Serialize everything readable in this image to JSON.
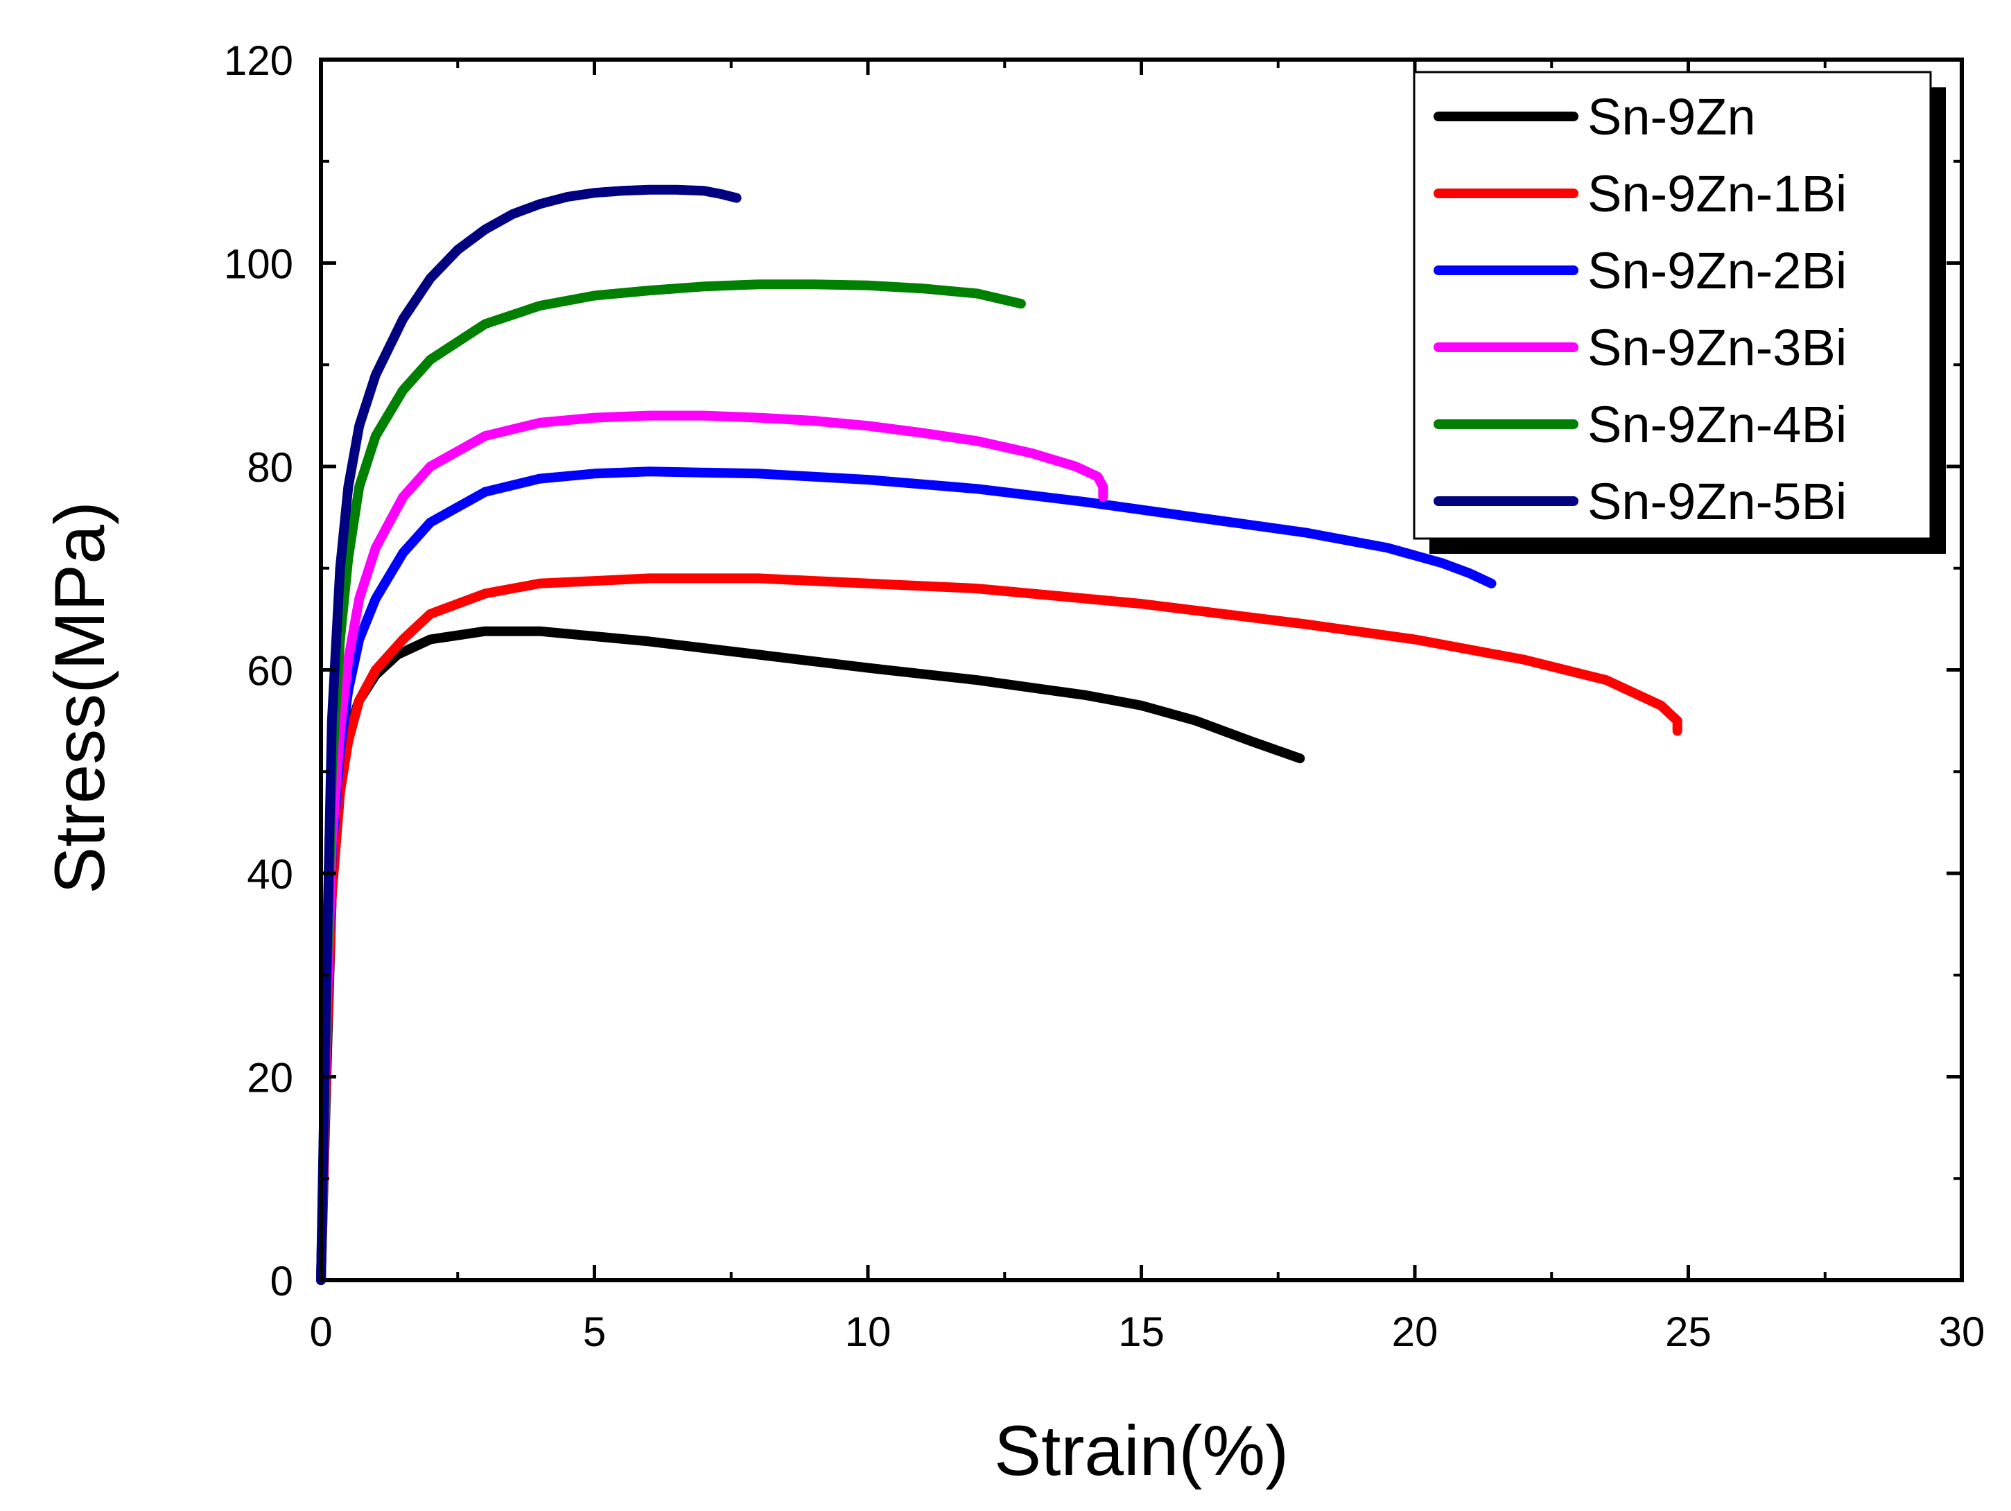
{
  "chart_data": {
    "type": "line",
    "title": "",
    "xlabel": "Strain(%)",
    "ylabel": "Stress(MPa)",
    "xlim": [
      0,
      30
    ],
    "ylim": [
      0,
      120
    ],
    "xticks": [
      0,
      5,
      10,
      15,
      20,
      25,
      30
    ],
    "xtick_labels": [
      "0",
      "5",
      "10",
      "15",
      "20",
      "25",
      "30"
    ],
    "yticks": [
      0,
      20,
      40,
      60,
      80,
      100,
      120
    ],
    "ytick_labels": [
      "0",
      "20",
      "40",
      "60",
      "80",
      "100",
      "120"
    ],
    "grid": false,
    "legend_position": "top-right",
    "series": [
      {
        "name": "Sn-9Zn",
        "color": "#000000",
        "x": [
          0,
          0.1,
          0.2,
          0.35,
          0.5,
          0.7,
          1.0,
          1.4,
          2.0,
          3.0,
          4.0,
          6.0,
          8.0,
          10.0,
          12.0,
          14.0,
          15.0,
          16.0,
          17.0,
          17.9
        ],
        "y": [
          0,
          20,
          38,
          48,
          54,
          57,
          59.5,
          61.5,
          63,
          63.8,
          63.8,
          62.8,
          61.5,
          60.2,
          59,
          57.5,
          56.5,
          55,
          53,
          51.3
        ]
      },
      {
        "name": "Sn-9Zn-1Bi",
        "color": "#ff0000",
        "x": [
          0,
          0.1,
          0.2,
          0.35,
          0.5,
          0.7,
          1.0,
          1.5,
          2.0,
          3.0,
          4.0,
          6.0,
          8.0,
          10.0,
          12.0,
          15.0,
          18.0,
          20.0,
          22.0,
          23.5,
          24.5,
          24.8,
          24.8
        ],
        "y": [
          0,
          22,
          38,
          48,
          53,
          57,
          60,
          63,
          65.5,
          67.5,
          68.5,
          69,
          69,
          68.5,
          68,
          66.5,
          64.5,
          63,
          61,
          59,
          56.5,
          55,
          54
        ]
      },
      {
        "name": "Sn-9Zn-2Bi",
        "color": "#0000ff",
        "x": [
          0,
          0.1,
          0.2,
          0.35,
          0.5,
          0.7,
          1.0,
          1.5,
          2.0,
          3.0,
          4.0,
          5.0,
          6.0,
          8.0,
          10.0,
          12.0,
          14.0,
          16.0,
          18.0,
          19.5,
          20.5,
          21.0,
          21.4
        ],
        "y": [
          0,
          25,
          42,
          52,
          58,
          63,
          67,
          71.5,
          74.5,
          77.5,
          78.8,
          79.3,
          79.5,
          79.3,
          78.7,
          77.8,
          76.5,
          75,
          73.5,
          72,
          70.5,
          69.5,
          68.5
        ]
      },
      {
        "name": "Sn-9Zn-3Bi",
        "color": "#ff00ff",
        "x": [
          0,
          0.1,
          0.2,
          0.35,
          0.5,
          0.7,
          1.0,
          1.5,
          2.0,
          3.0,
          4.0,
          5.0,
          6.0,
          7.0,
          8.0,
          9.0,
          10.0,
          11.0,
          12.0,
          13.0,
          13.8,
          14.2,
          14.3,
          14.3
        ],
        "y": [
          0,
          25,
          43,
          54,
          61,
          67,
          72,
          77,
          80,
          83,
          84.3,
          84.8,
          85,
          85,
          84.8,
          84.5,
          84,
          83.3,
          82.5,
          81.3,
          80,
          79,
          78,
          77
        ]
      },
      {
        "name": "Sn-9Zn-4Bi",
        "color": "#008000",
        "x": [
          0,
          0.1,
          0.2,
          0.35,
          0.5,
          0.7,
          1.0,
          1.5,
          2.0,
          3.0,
          4.0,
          5.0,
          6.0,
          7.0,
          8.0,
          9.0,
          10.0,
          11.0,
          12.0,
          12.8
        ],
        "y": [
          0,
          28,
          50,
          63,
          71,
          78,
          83,
          87.5,
          90.5,
          94,
          95.8,
          96.8,
          97.3,
          97.7,
          97.9,
          97.9,
          97.8,
          97.5,
          97,
          96
        ]
      },
      {
        "name": "Sn-9Zn-5Bi",
        "color": "#000080",
        "x": [
          0,
          0.1,
          0.2,
          0.35,
          0.5,
          0.7,
          1.0,
          1.5,
          2.0,
          2.5,
          3.0,
          3.5,
          4.0,
          4.5,
          5.0,
          5.5,
          6.0,
          6.5,
          7.0,
          7.3,
          7.6
        ],
        "y": [
          0,
          30,
          55,
          70,
          78,
          84,
          89,
          94.5,
          98.5,
          101.3,
          103.3,
          104.8,
          105.8,
          106.5,
          106.9,
          107.1,
          107.2,
          107.2,
          107.1,
          106.8,
          106.4
        ]
      }
    ]
  }
}
